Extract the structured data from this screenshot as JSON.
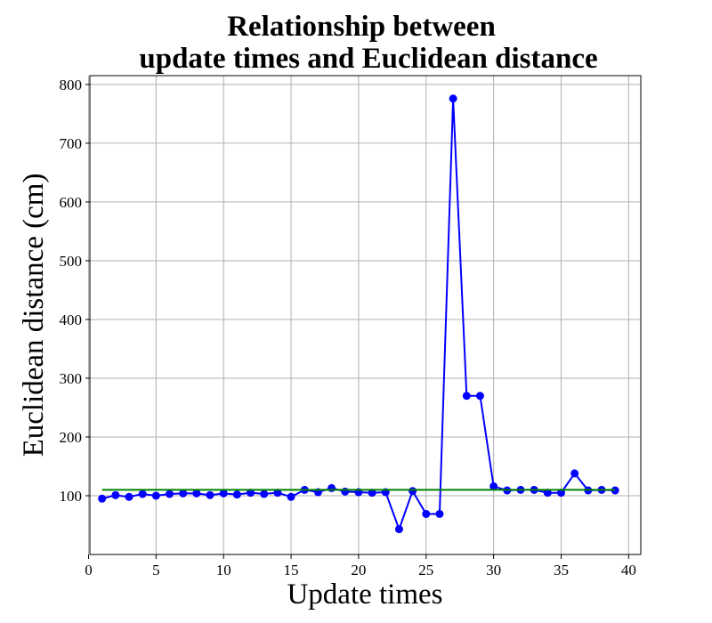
{
  "chart_data": {
    "type": "line",
    "title_lines": [
      "Relationship between",
      "update times and Euclidean distance"
    ],
    "xlabel": "Update times",
    "ylabel": "Euclidean distance (cm)",
    "xlim": [
      0.1,
      40.9
    ],
    "ylim": [
      0.0,
      815.0
    ],
    "xticks": [
      0,
      5,
      10,
      15,
      20,
      25,
      30,
      35,
      40
    ],
    "yticks": [
      100,
      200,
      300,
      400,
      500,
      600,
      700,
      800
    ],
    "grid": true,
    "series": [
      {
        "color": "#0000ff",
        "marker": "circle",
        "x": [
          1,
          2,
          3,
          4,
          5,
          6,
          7,
          8,
          9,
          10,
          11,
          12,
          13,
          14,
          15,
          16,
          17,
          18,
          19,
          20,
          21,
          22,
          23,
          24,
          25,
          26,
          27,
          28,
          29,
          30,
          31,
          32,
          33,
          34,
          35,
          36,
          37,
          38,
          39
        ],
        "y": [
          95,
          101,
          98,
          103,
          100,
          103,
          104,
          104,
          101,
          104,
          102,
          105,
          103,
          105,
          98,
          110,
          106,
          113,
          107,
          106,
          105,
          106,
          43,
          108,
          69,
          69,
          776,
          270,
          270,
          116,
          109,
          110,
          110,
          105,
          105,
          138,
          109,
          110,
          109
        ]
      },
      {
        "color": "#008000",
        "marker": "none",
        "x": [
          1,
          39
        ],
        "y": [
          110,
          110
        ]
      }
    ]
  }
}
